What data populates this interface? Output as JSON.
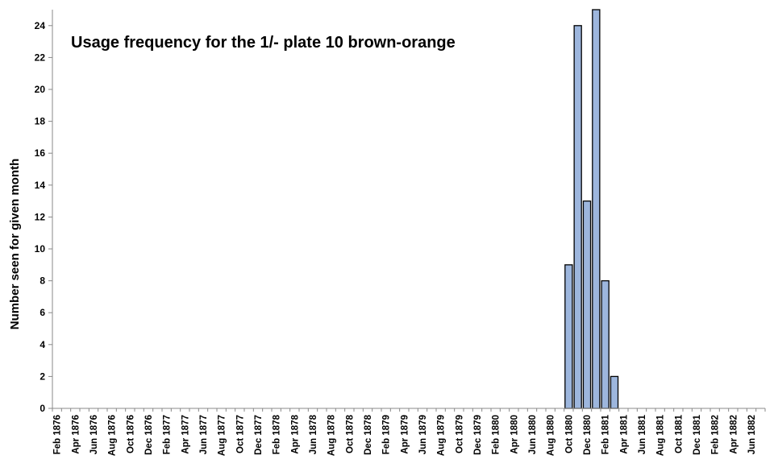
{
  "chart_data": {
    "type": "bar",
    "title": "Usage frequency for the 1/- plate 10 brown-orange",
    "xlabel": "",
    "ylabel": "Number seen for given month",
    "ylim": [
      0,
      25
    ],
    "yticks": [
      0,
      2,
      4,
      6,
      8,
      10,
      12,
      14,
      16,
      18,
      20,
      22,
      24
    ],
    "grid": false,
    "legend": "none",
    "bar_color": "#9db6dd",
    "bar_edge_color": "#000000",
    "categories": [
      "Feb 1876",
      "Mar 1876",
      "Apr 1876",
      "May 1876",
      "Jun 1876",
      "Jul 1876",
      "Aug 1876",
      "Sep 1876",
      "Oct 1876",
      "Nov 1876",
      "Dec 1876",
      "Jan 1877",
      "Feb 1877",
      "Mar 1877",
      "Apr 1877",
      "May 1877",
      "Jun 1877",
      "Jul 1877",
      "Aug 1877",
      "Sep 1877",
      "Oct 1877",
      "Nov 1877",
      "Dec 1877",
      "Jan 1878",
      "Feb 1878",
      "Mar 1878",
      "Apr 1878",
      "May 1878",
      "Jun 1878",
      "Jul 1878",
      "Aug 1878",
      "Sep 1878",
      "Oct 1878",
      "Nov 1878",
      "Dec 1878",
      "Jan 1879",
      "Feb 1879",
      "Mar 1879",
      "Apr 1879",
      "May 1879",
      "Jun 1879",
      "Jul 1879",
      "Aug 1879",
      "Sep 1879",
      "Oct 1879",
      "Nov 1879",
      "Dec 1879",
      "Jan 1880",
      "Feb 1880",
      "Mar 1880",
      "Apr 1880",
      "May 1880",
      "Jun 1880",
      "Jul 1880",
      "Aug 1880",
      "Sep 1880",
      "Oct 1880",
      "Nov 1880",
      "Dec 1880",
      "Jan 1881",
      "Feb 1881",
      "Mar 1881",
      "Apr 1881",
      "May 1881",
      "Jun 1881",
      "Jul 1881",
      "Aug 1881",
      "Sep 1881",
      "Oct 1881",
      "Nov 1881",
      "Dec 1881",
      "Jan 1882",
      "Feb 1882",
      "Mar 1882",
      "Apr 1882",
      "May 1882",
      "Jun 1882",
      "Jul 1882"
    ],
    "tick_labels": [
      "Feb 1876",
      "Apr 1876",
      "Jun 1876",
      "Aug 1876",
      "Oct 1876",
      "Dec 1876",
      "Feb 1877",
      "Apr 1877",
      "Jun 1877",
      "Aug 1877",
      "Oct 1877",
      "Dec 1877",
      "Feb 1878",
      "Apr 1878",
      "Jun 1878",
      "Aug 1878",
      "Oct 1878",
      "Dec 1878",
      "Feb 1879",
      "Apr 1879",
      "Jun 1879",
      "Aug 1879",
      "Oct 1879",
      "Dec 1879",
      "Feb 1880",
      "Apr 1880",
      "Jun 1880",
      "Aug 1880",
      "Oct 1880",
      "Dec 1880",
      "Feb 1881",
      "Apr 1881",
      "Jun 1881",
      "Aug 1881",
      "Oct 1881",
      "Dec 1881",
      "Feb 1882",
      "Apr 1882",
      "Jun 1882"
    ],
    "values": [
      0,
      0,
      0,
      0,
      0,
      0,
      0,
      0,
      0,
      0,
      0,
      0,
      0,
      0,
      0,
      0,
      0,
      0,
      0,
      0,
      0,
      0,
      0,
      0,
      0,
      0,
      0,
      0,
      0,
      0,
      0,
      0,
      0,
      0,
      0,
      0,
      0,
      0,
      0,
      0,
      0,
      0,
      0,
      0,
      0,
      0,
      0,
      0,
      0,
      0,
      0,
      0,
      0,
      0,
      0,
      0,
      9,
      24,
      13,
      25,
      8,
      2,
      0,
      0,
      0,
      0,
      0,
      0,
      0,
      0,
      0,
      0,
      0,
      0,
      0,
      0,
      0,
      0
    ]
  }
}
